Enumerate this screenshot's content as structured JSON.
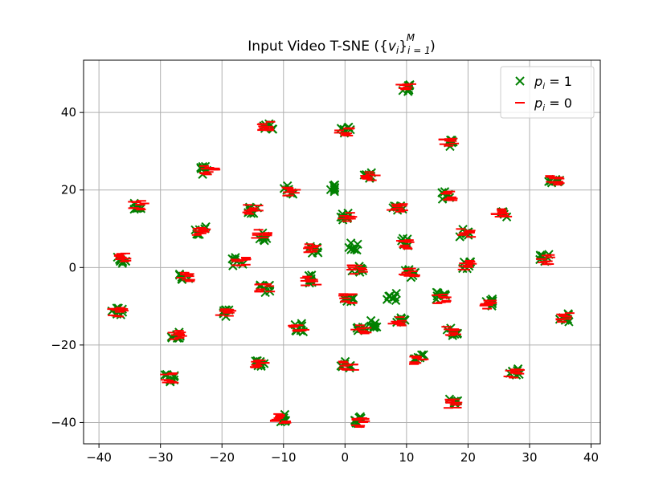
{
  "chart_data": {
    "type": "scatter",
    "title": "Input Video T-SNE ({v_i}_{i=1}^M)",
    "title_parts": {
      "prefix": "Input Video T-SNE (",
      "set_open": "{",
      "var": "v",
      "sub": "i",
      "set_close": "}",
      "sub2": "i = 1",
      "sup": "M",
      "suffix": ")"
    },
    "xlabel": "",
    "ylabel": "",
    "xlim": [
      -42.5,
      41.5
    ],
    "ylim": [
      -45.5,
      53.5
    ],
    "xticks": [
      -40,
      -30,
      -20,
      -10,
      0,
      10,
      20,
      30,
      40
    ],
    "yticks": [
      -40,
      -20,
      0,
      20,
      40
    ],
    "xtick_labels": [
      "−40",
      "−30",
      "−20",
      "−10",
      "0",
      "10",
      "20",
      "30",
      "40"
    ],
    "ytick_labels": [
      "−40",
      "−20",
      "0",
      "20",
      "40"
    ],
    "grid": true,
    "legend_position": "top-right",
    "legend": [
      {
        "label": "p_i = 1",
        "var": "p",
        "sub": "i",
        "rel": " = 1",
        "marker": "x",
        "color": "#008000"
      },
      {
        "label": "p_i = 0",
        "var": "p",
        "sub": "i",
        "rel": " = 0",
        "marker": "_",
        "color": "#ff0000"
      }
    ],
    "series": [
      {
        "name": "p_i = 1",
        "marker": "x",
        "color": "#008000",
        "points": [
          [
            10,
            46.5
          ],
          [
            -12.5,
            36.5
          ],
          [
            0,
            35.5
          ],
          [
            17,
            32
          ],
          [
            -23,
            25
          ],
          [
            4,
            24
          ],
          [
            34,
            22.5
          ],
          [
            -33.5,
            16
          ],
          [
            -9,
            20
          ],
          [
            -2,
            20.5
          ],
          [
            8.5,
            15.5
          ],
          [
            16.5,
            18.5
          ],
          [
            -15,
            15
          ],
          [
            0,
            13
          ],
          [
            25.5,
            14
          ],
          [
            -23.5,
            9.5
          ],
          [
            -13.5,
            8
          ],
          [
            1.5,
            5.5
          ],
          [
            -5,
            4.5
          ],
          [
            10,
            6.5
          ],
          [
            19.5,
            9
          ],
          [
            -36.5,
            2
          ],
          [
            -17.5,
            1.5
          ],
          [
            2,
            -0.5
          ],
          [
            10.5,
            -1.5
          ],
          [
            20,
            0.5
          ],
          [
            32.5,
            2.5
          ],
          [
            -26,
            -2.5
          ],
          [
            -13,
            -5.5
          ],
          [
            -5.5,
            -3
          ],
          [
            0.5,
            -8
          ],
          [
            7.5,
            -7.5
          ],
          [
            15.5,
            -7.5
          ],
          [
            23.5,
            -9
          ],
          [
            -37,
            -11.5
          ],
          [
            -19.5,
            -12
          ],
          [
            5,
            -14.5
          ],
          [
            9,
            -14
          ],
          [
            -27.5,
            -17.5
          ],
          [
            -7.5,
            -15.5
          ],
          [
            2.5,
            -16
          ],
          [
            17.5,
            -16.5
          ],
          [
            35.5,
            -13
          ],
          [
            -14,
            -24.5
          ],
          [
            0,
            -25
          ],
          [
            12,
            -23.5
          ],
          [
            27.5,
            -27
          ],
          [
            -28.5,
            -28.5
          ],
          [
            17.5,
            -35
          ],
          [
            -10.5,
            -39
          ],
          [
            2.5,
            -39.5
          ]
        ]
      },
      {
        "name": "p_i = 0",
        "marker": "_",
        "color": "#ff0000",
        "points": [
          [
            10,
            46.5
          ],
          [
            -12.5,
            36.5
          ],
          [
            0,
            35
          ],
          [
            17,
            32
          ],
          [
            -22,
            25
          ],
          [
            4,
            23.5
          ],
          [
            34,
            22.5
          ],
          [
            -33.5,
            16
          ],
          [
            -8.5,
            19.5
          ],
          [
            16.5,
            18.5
          ],
          [
            8.5,
            15.5
          ],
          [
            -15,
            15
          ],
          [
            0.5,
            13
          ],
          [
            25.5,
            14
          ],
          [
            -23.5,
            9.5
          ],
          [
            -13.5,
            8.5
          ],
          [
            -5,
            5
          ],
          [
            10,
            6
          ],
          [
            19.5,
            9
          ],
          [
            -36.5,
            2.5
          ],
          [
            -17,
            1.5
          ],
          [
            2,
            -0.5
          ],
          [
            10.5,
            -1.5
          ],
          [
            20,
            0.5
          ],
          [
            32.5,
            2
          ],
          [
            -26,
            -2.5
          ],
          [
            -13,
            -5.5
          ],
          [
            -5.5,
            -3.5
          ],
          [
            0.5,
            -8
          ],
          [
            15.5,
            -8
          ],
          [
            23.5,
            -9.5
          ],
          [
            -37,
            -11.5
          ],
          [
            -19.5,
            -12
          ],
          [
            8.5,
            -14
          ],
          [
            -27.5,
            -17.5
          ],
          [
            -7.5,
            -15.5
          ],
          [
            2.5,
            -16
          ],
          [
            17.5,
            -16.5
          ],
          [
            35.5,
            -13
          ],
          [
            -14,
            -25
          ],
          [
            0.5,
            -25.5
          ],
          [
            12,
            -24
          ],
          [
            27.5,
            -27.5
          ],
          [
            -28.5,
            -28.5
          ],
          [
            17.5,
            -35
          ],
          [
            -10.5,
            -39
          ],
          [
            2.5,
            -40
          ]
        ]
      }
    ]
  }
}
